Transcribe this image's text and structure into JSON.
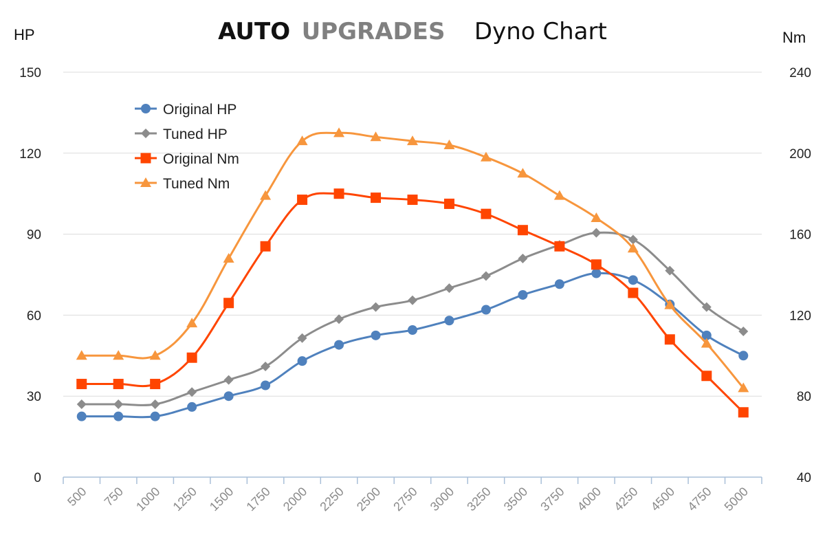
{
  "chart_data": {
    "type": "line",
    "title_parts": {
      "brand_bold": "AUTO",
      "brand_gray": "UPGRADES",
      "main": "Dyno Chart"
    },
    "left_axis_unit": "HP",
    "right_axis_unit": "Nm",
    "x": [
      500,
      750,
      1000,
      1250,
      1500,
      1750,
      2000,
      2250,
      2500,
      2750,
      3000,
      3250,
      3500,
      3750,
      4000,
      4250,
      4500,
      4750,
      5000
    ],
    "left_ylim": [
      0,
      150
    ],
    "left_yticks": [
      0,
      30,
      60,
      90,
      120,
      150
    ],
    "right_yticks": [
      40,
      80,
      120,
      160,
      200,
      240
    ],
    "right_ylim": [
      40,
      240
    ],
    "grid": true,
    "legend_position": "top-left",
    "series": [
      {
        "name": "Original HP",
        "axis": "left",
        "color": "#4f81bd",
        "marker": "circle",
        "values": [
          22.5,
          22.5,
          22.5,
          26,
          30,
          34,
          43,
          49,
          52.5,
          54.5,
          58,
          62,
          67.5,
          71.5,
          75.5,
          73,
          64,
          52.5,
          45
        ]
      },
      {
        "name": "Tuned HP",
        "axis": "left",
        "color": "#8c8c8c",
        "marker": "diamond",
        "values": [
          27,
          27,
          27,
          31.5,
          36,
          41,
          51.5,
          58.5,
          63,
          65.5,
          70,
          74.5,
          81,
          86,
          90.5,
          88,
          76.5,
          63,
          54
        ]
      },
      {
        "name": "Original Nm",
        "axis": "right",
        "color": "#ff4500",
        "marker": "square",
        "values": [
          86,
          86,
          86,
          99,
          126,
          154,
          177,
          180,
          178,
          177,
          175,
          170,
          162,
          154,
          145,
          131,
          108,
          90,
          72
        ]
      },
      {
        "name": "Tuned Nm",
        "axis": "right",
        "color": "#f7963d",
        "marker": "triangle",
        "values": [
          100,
          100,
          100,
          116,
          148,
          179,
          206,
          210,
          208,
          206,
          204,
          198,
          190,
          179,
          168,
          153,
          125,
          106,
          84
        ]
      }
    ]
  }
}
